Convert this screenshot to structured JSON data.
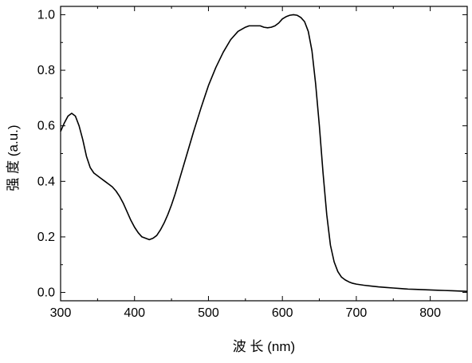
{
  "chart_data": {
    "type": "line",
    "xlabel": "波 长 (nm)",
    "ylabel": "强 度 (a.u.)",
    "xlim": [
      300,
      850
    ],
    "ylim": [
      -0.03,
      1.03
    ],
    "x_ticks": [
      "300",
      "400",
      "500",
      "600",
      "700",
      "800"
    ],
    "y_ticks": [
      "0.0",
      "0.2",
      "0.4",
      "0.6",
      "0.8",
      "1.0"
    ],
    "grid": false,
    "legend": "none",
    "line_color": "#000000",
    "series": [
      {
        "x": [
          300,
          305,
          310,
          315,
          320,
          325,
          330,
          335,
          340,
          345,
          350,
          355,
          360,
          365,
          370,
          375,
          380,
          385,
          390,
          395,
          400,
          405,
          410,
          415,
          420,
          425,
          430,
          435,
          440,
          445,
          450,
          455,
          460,
          470,
          480,
          490,
          500,
          510,
          520,
          530,
          540,
          550,
          555,
          560,
          565,
          570,
          575,
          580,
          585,
          590,
          595,
          600,
          605,
          610,
          615,
          620,
          625,
          630,
          635,
          640,
          645,
          650,
          655,
          660,
          665,
          670,
          675,
          680,
          685,
          690,
          695,
          700,
          710,
          720,
          730,
          740,
          750,
          760,
          770,
          780,
          790,
          800,
          810,
          820,
          830,
          840,
          850
        ],
        "values": [
          0.58,
          0.61,
          0.635,
          0.645,
          0.635,
          0.6,
          0.55,
          0.49,
          0.45,
          0.43,
          0.42,
          0.41,
          0.4,
          0.39,
          0.38,
          0.365,
          0.345,
          0.32,
          0.29,
          0.26,
          0.235,
          0.215,
          0.2,
          0.195,
          0.19,
          0.195,
          0.205,
          0.225,
          0.25,
          0.28,
          0.315,
          0.355,
          0.4,
          0.49,
          0.58,
          0.665,
          0.745,
          0.81,
          0.865,
          0.91,
          0.94,
          0.955,
          0.96,
          0.96,
          0.96,
          0.96,
          0.955,
          0.953,
          0.955,
          0.96,
          0.97,
          0.985,
          0.993,
          0.998,
          1.0,
          0.998,
          0.99,
          0.975,
          0.94,
          0.87,
          0.75,
          0.6,
          0.43,
          0.28,
          0.17,
          0.11,
          0.075,
          0.055,
          0.045,
          0.038,
          0.033,
          0.03,
          0.026,
          0.023,
          0.02,
          0.018,
          0.016,
          0.014,
          0.012,
          0.011,
          0.01,
          0.009,
          0.008,
          0.007,
          0.006,
          0.005,
          0.004
        ]
      }
    ]
  }
}
